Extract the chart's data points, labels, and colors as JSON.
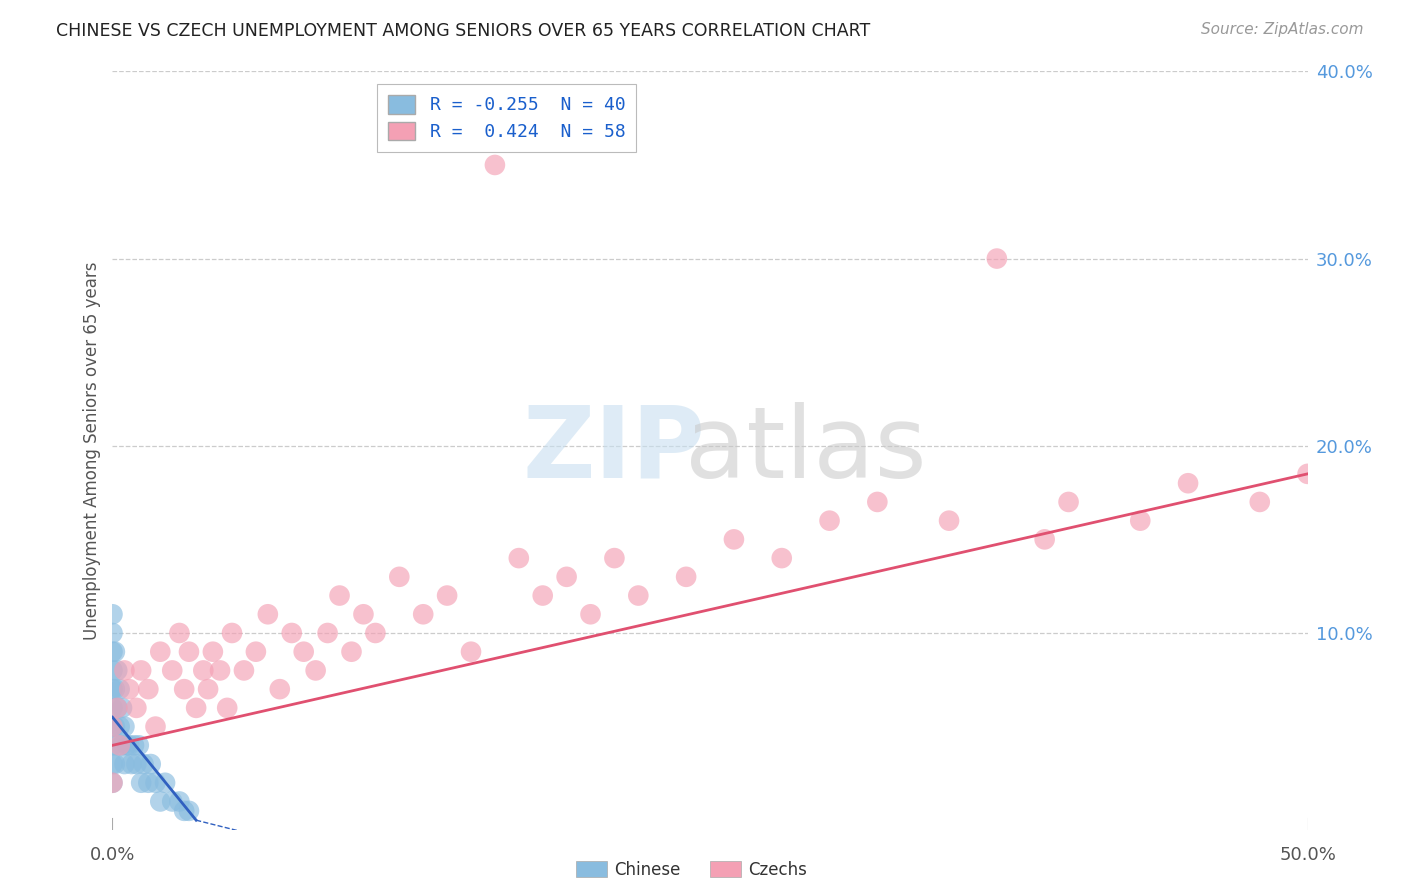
{
  "title": "CHINESE VS CZECH UNEMPLOYMENT AMONG SENIORS OVER 65 YEARS CORRELATION CHART",
  "source": "Source: ZipAtlas.com",
  "ylabel": "Unemployment Among Seniors over 65 years",
  "legend_entries": [
    {
      "label": "R = -0.255  N = 40",
      "color": "#a8c8e8"
    },
    {
      "label": "R =  0.424  N = 58",
      "color": "#f4a8b8"
    }
  ],
  "xlim": [
    0.0,
    0.5
  ],
  "ylim": [
    -0.005,
    0.4
  ],
  "xtick_positions": [
    0.0,
    0.5
  ],
  "xticklabels": [
    "0.0%",
    "50.0%"
  ],
  "ytick_positions": [
    0.1,
    0.2,
    0.3,
    0.4
  ],
  "yticklabels_right": [
    "10.0%",
    "20.0%",
    "30.0%",
    "40.0%"
  ],
  "grid_yticks": [
    0.1,
    0.2,
    0.3,
    0.4
  ],
  "blue_color": "#89bcdf",
  "pink_color": "#f4a0b4",
  "blue_line_color": "#3060c0",
  "pink_line_color": "#e05070",
  "chinese_data_x": [
    0.0,
    0.0,
    0.0,
    0.0,
    0.0,
    0.0,
    0.0,
    0.0,
    0.0,
    0.0,
    0.001,
    0.001,
    0.001,
    0.001,
    0.002,
    0.002,
    0.002,
    0.003,
    0.003,
    0.004,
    0.004,
    0.005,
    0.005,
    0.006,
    0.007,
    0.008,
    0.009,
    0.01,
    0.011,
    0.012,
    0.013,
    0.015,
    0.016,
    0.018,
    0.02,
    0.022,
    0.025,
    0.028,
    0.03,
    0.032
  ],
  "chinese_data_y": [
    0.05,
    0.08,
    0.1,
    0.09,
    0.06,
    0.04,
    0.03,
    0.02,
    0.07,
    0.11,
    0.09,
    0.07,
    0.05,
    0.03,
    0.08,
    0.06,
    0.04,
    0.07,
    0.05,
    0.06,
    0.04,
    0.05,
    0.03,
    0.04,
    0.04,
    0.03,
    0.04,
    0.03,
    0.04,
    0.02,
    0.03,
    0.02,
    0.03,
    0.02,
    0.01,
    0.02,
    0.01,
    0.01,
    0.005,
    0.005
  ],
  "czech_data_x": [
    0.0,
    0.0,
    0.002,
    0.003,
    0.005,
    0.007,
    0.01,
    0.012,
    0.015,
    0.018,
    0.02,
    0.025,
    0.028,
    0.03,
    0.032,
    0.035,
    0.038,
    0.04,
    0.042,
    0.045,
    0.048,
    0.05,
    0.055,
    0.06,
    0.065,
    0.07,
    0.075,
    0.08,
    0.085,
    0.09,
    0.095,
    0.1,
    0.105,
    0.11,
    0.12,
    0.13,
    0.14,
    0.15,
    0.16,
    0.17,
    0.18,
    0.19,
    0.2,
    0.21,
    0.22,
    0.24,
    0.26,
    0.28,
    0.3,
    0.32,
    0.35,
    0.37,
    0.39,
    0.4,
    0.43,
    0.45,
    0.48,
    0.5
  ],
  "czech_data_y": [
    0.05,
    0.02,
    0.06,
    0.04,
    0.08,
    0.07,
    0.06,
    0.08,
    0.07,
    0.05,
    0.09,
    0.08,
    0.1,
    0.07,
    0.09,
    0.06,
    0.08,
    0.07,
    0.09,
    0.08,
    0.06,
    0.1,
    0.08,
    0.09,
    0.11,
    0.07,
    0.1,
    0.09,
    0.08,
    0.1,
    0.12,
    0.09,
    0.11,
    0.1,
    0.13,
    0.11,
    0.12,
    0.09,
    0.35,
    0.14,
    0.12,
    0.13,
    0.11,
    0.14,
    0.12,
    0.13,
    0.15,
    0.14,
    0.16,
    0.17,
    0.16,
    0.3,
    0.15,
    0.17,
    0.16,
    0.18,
    0.17,
    0.185
  ],
  "pink_line_x0": 0.0,
  "pink_line_y0": 0.04,
  "pink_line_x1": 0.5,
  "pink_line_y1": 0.185,
  "blue_line_x0": 0.0,
  "blue_line_y0": 0.055,
  "blue_line_x1": 0.035,
  "blue_line_y1": 0.0
}
